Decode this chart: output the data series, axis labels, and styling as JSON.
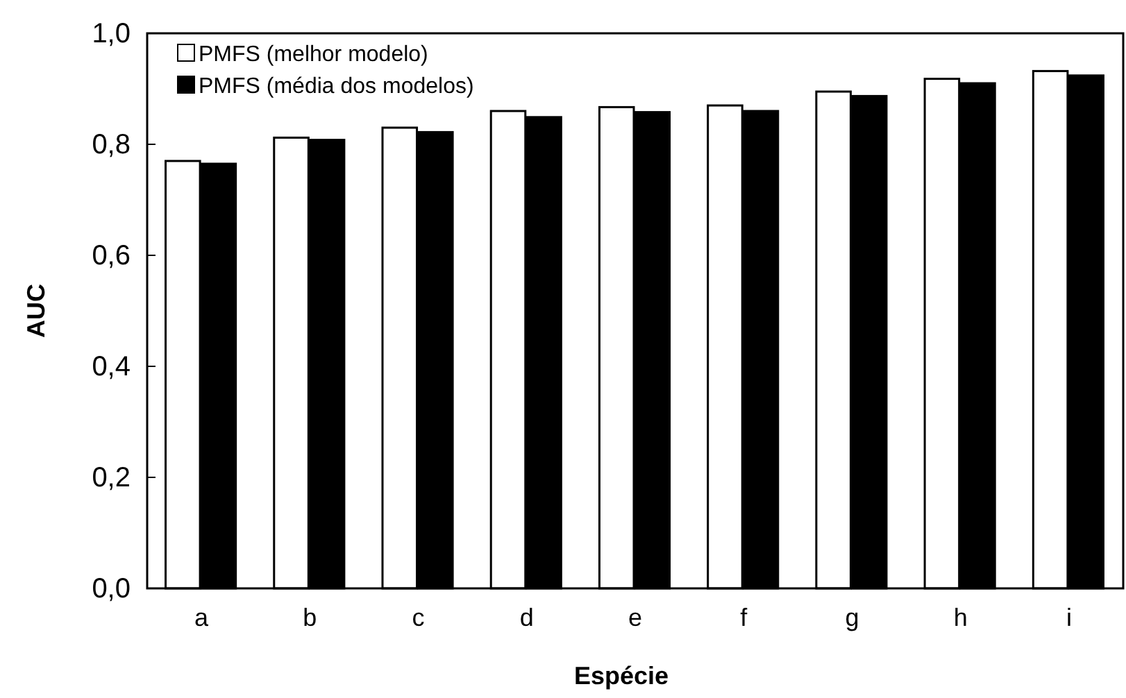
{
  "chart_data": {
    "type": "bar",
    "xlabel": "Espécie",
    "ylabel": "AUC",
    "categories": [
      "a",
      "b",
      "c",
      "d",
      "e",
      "f",
      "g",
      "h",
      "i"
    ],
    "series": [
      {
        "name": "PMFS (melhor modelo)",
        "color": "#ffffff",
        "values": [
          0.77,
          0.812,
          0.83,
          0.86,
          0.867,
          0.87,
          0.895,
          0.918,
          0.932
        ]
      },
      {
        "name": "PMFS (média dos modelos)",
        "color": "#000000",
        "values": [
          0.765,
          0.808,
          0.822,
          0.849,
          0.858,
          0.86,
          0.887,
          0.91,
          0.924
        ]
      }
    ],
    "ylim": [
      0,
      1
    ],
    "yticks": [
      {
        "value": 0,
        "label": "0,0"
      },
      {
        "value": 0.2,
        "label": "0,2"
      },
      {
        "value": 0.4,
        "label": "0,4"
      },
      {
        "value": 0.6,
        "label": "0,6"
      },
      {
        "value": 0.8,
        "label": "0,8"
      },
      {
        "value": 1,
        "label": "1,0"
      }
    ],
    "grid": false,
    "legend": "top left"
  }
}
